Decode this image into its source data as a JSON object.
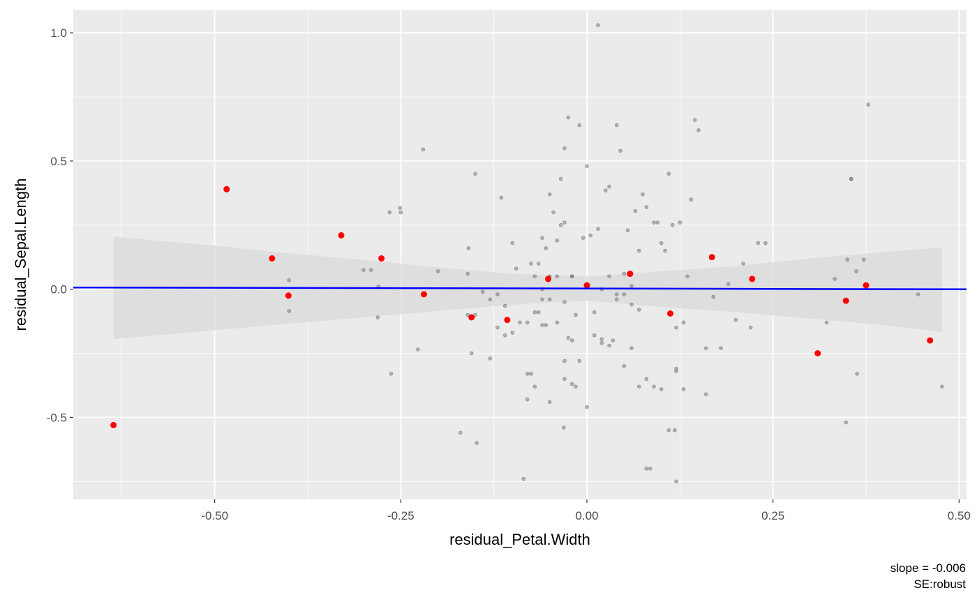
{
  "chart_data": {
    "type": "scatter",
    "xlabel": "residual_Petal.Width",
    "ylabel": "residual_Sepal.Length",
    "xlim": [
      -0.69,
      0.51
    ],
    "ylim": [
      -0.82,
      1.09
    ],
    "x_ticks": [
      -0.5,
      -0.25,
      0.0,
      0.25,
      0.5
    ],
    "x_tick_labels": [
      "-0.50",
      "-0.25",
      "0.00",
      "0.25",
      "0.50"
    ],
    "y_ticks": [
      -0.5,
      0.0,
      0.5,
      1.0
    ],
    "y_tick_labels": [
      "-0.5",
      "0.0",
      "0.5",
      "1.0"
    ],
    "grid": true,
    "panel_background": "#ebebeb",
    "caption_lines": [
      "slope = -0.006",
      "SE:robust"
    ],
    "fit_line": {
      "color": "#0000ff",
      "x": [
        -0.69,
        0.51
      ],
      "y": [
        0.0065,
        -0.0005
      ]
    },
    "confidence_band": {
      "color": "#d9d9d9",
      "x": [
        -0.636,
        -0.5,
        -0.4,
        -0.3,
        -0.2,
        -0.1,
        0.0,
        0.1,
        0.2,
        0.3,
        0.4,
        0.477
      ],
      "upper": [
        0.205,
        0.17,
        0.14,
        0.115,
        0.085,
        0.06,
        0.05,
        0.07,
        0.09,
        0.12,
        0.145,
        0.163
      ],
      "lower": [
        -0.195,
        -0.16,
        -0.135,
        -0.11,
        -0.085,
        -0.06,
        -0.045,
        -0.07,
        -0.09,
        -0.115,
        -0.14,
        -0.168
      ]
    },
    "series": [
      {
        "color": "#7f7f7f",
        "x": [
          0.015,
          0.378,
          -0.3,
          -0.281,
          -0.265,
          -0.251,
          -0.22,
          -0.159,
          -0.115,
          -0.227,
          -0.263,
          -0.29,
          -0.28,
          -0.25,
          -0.2,
          -0.15,
          -0.16,
          -0.17,
          -0.14,
          -0.13,
          -0.12,
          -0.1,
          -0.11,
          -0.095,
          -0.08,
          -0.075,
          -0.07,
          -0.065,
          -0.06,
          -0.055,
          -0.05,
          -0.045,
          -0.04,
          -0.035,
          -0.03,
          -0.025,
          -0.02,
          -0.015,
          -0.01,
          -0.005,
          0.0,
          0.005,
          0.01,
          0.015,
          0.02,
          0.025,
          0.03,
          0.035,
          0.04,
          0.045,
          0.05,
          0.055,
          0.06,
          0.065,
          0.07,
          0.075,
          0.08,
          0.085,
          0.09,
          0.095,
          0.1,
          0.105,
          0.11,
          0.115,
          0.12,
          0.125,
          0.13,
          0.135,
          0.14,
          0.145,
          0.15,
          0.16,
          0.17,
          0.18,
          0.19,
          0.2,
          0.21,
          0.22,
          0.23,
          0.24,
          -0.15,
          -0.16,
          -0.13,
          -0.12,
          -0.11,
          -0.1,
          -0.09,
          -0.08,
          -0.07,
          -0.06,
          -0.05,
          -0.04,
          -0.03,
          -0.02,
          -0.01,
          0.0,
          0.01,
          0.02,
          0.03,
          0.04,
          0.05,
          0.06,
          0.07,
          0.08,
          0.09,
          0.1,
          0.11,
          0.12,
          -0.05,
          -0.04,
          -0.06,
          -0.03,
          -0.02,
          0.02,
          0.03,
          0.04,
          0.05,
          0.06,
          0.07,
          -0.08,
          -0.075,
          -0.07,
          -0.065,
          -0.06,
          -0.055,
          -0.05,
          -0.035,
          -0.03,
          -0.025,
          -0.015,
          0.355,
          0.355,
          0.372,
          0.363,
          0.362,
          0.35,
          0.322,
          0.333,
          0.445,
          0.477,
          -0.4,
          -0.4,
          -0.031,
          -0.03,
          -0.02,
          0.118,
          0.12,
          0.08,
          0.16,
          0.13,
          -0.155,
          -0.148,
          -0.085,
          0.12,
          0.348
        ],
        "y": [
          1.03,
          0.72,
          0.075,
          -0.11,
          0.3,
          0.317,
          0.545,
          0.16,
          0.357,
          -0.235,
          -0.33,
          0.075,
          0.01,
          0.3,
          0.07,
          0.45,
          0.06,
          -0.56,
          -0.01,
          -0.04,
          -0.02,
          0.18,
          -0.065,
          0.08,
          -0.13,
          0.1,
          0.05,
          0.1,
          0.2,
          0.16,
          0.37,
          0.3,
          0.19,
          0.43,
          0.55,
          0.67,
          0.05,
          -0.1,
          0.64,
          0.2,
          0.48,
          0.21,
          -0.09,
          0.235,
          -0.195,
          0.385,
          0.4,
          -0.2,
          0.64,
          0.54,
          0.06,
          0.23,
          0.012,
          0.305,
          0.15,
          0.37,
          0.32,
          -0.7,
          0.26,
          0.26,
          0.18,
          0.15,
          0.45,
          0.25,
          -0.75,
          0.26,
          -0.39,
          0.05,
          0.35,
          0.66,
          0.62,
          -0.41,
          -0.03,
          -0.23,
          0.02,
          -0.12,
          0.1,
          -0.15,
          0.18,
          0.18,
          -0.1,
          -0.1,
          -0.27,
          -0.15,
          -0.18,
          -0.17,
          -0.13,
          -0.43,
          -0.38,
          -0.04,
          -0.44,
          -0.13,
          -0.28,
          -0.37,
          -0.28,
          -0.46,
          -0.18,
          -0.21,
          -0.22,
          -0.02,
          -0.3,
          -0.23,
          -0.38,
          -0.35,
          -0.38,
          -0.39,
          -0.55,
          -0.31,
          0.05,
          0.05,
          0.0,
          -0.05,
          0.05,
          0.0,
          0.05,
          -0.04,
          -0.02,
          -0.06,
          -0.08,
          -0.33,
          -0.33,
          -0.09,
          -0.09,
          -0.14,
          -0.14,
          -0.04,
          0.25,
          0.26,
          -0.19,
          -0.38,
          0.43,
          0.43,
          0.115,
          -0.33,
          0.07,
          0.115,
          -0.13,
          0.04,
          -0.02,
          -0.38,
          0.035,
          -0.085,
          -0.54,
          -0.35,
          -0.2,
          -0.55,
          -0.15,
          -0.7,
          -0.23,
          -0.13,
          -0.25,
          -0.6,
          -0.74,
          -0.32,
          -0.52
        ]
      },
      {
        "color": "#ff0000",
        "x": [
          -0.636,
          -0.484,
          -0.423,
          -0.401,
          -0.33,
          -0.276,
          -0.219,
          -0.155,
          -0.107,
          -0.052,
          0.0,
          0.058,
          0.112,
          0.168,
          0.222,
          0.31,
          0.348,
          0.375,
          0.461
        ],
        "y": [
          -0.53,
          0.39,
          0.12,
          -0.025,
          0.21,
          0.12,
          -0.02,
          -0.11,
          -0.12,
          0.04,
          0.015,
          0.06,
          -0.095,
          0.125,
          0.04,
          -0.25,
          -0.045,
          0.015,
          -0.2
        ]
      }
    ]
  }
}
